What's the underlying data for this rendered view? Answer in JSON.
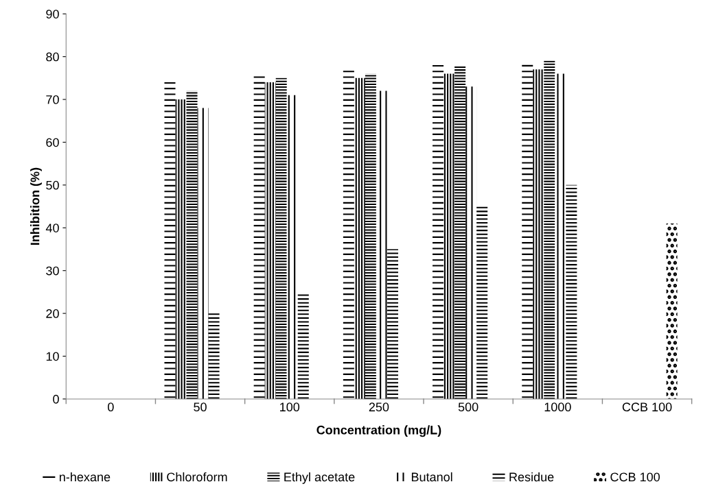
{
  "chart_data": {
    "type": "bar",
    "xlabel": "Concentration (mg/L)",
    "ylabel": "Inhibition (%)",
    "categories": [
      "0",
      "50",
      "100",
      "250",
      "500",
      "1000",
      "CCB 100"
    ],
    "series": [
      {
        "name": "n-hexane",
        "color": "#000000",
        "values": [
          null,
          74,
          76,
          77,
          78,
          78.5,
          null
        ]
      },
      {
        "name": "Chloroform",
        "color": "#000000",
        "values": [
          null,
          70,
          74,
          75,
          76,
          77,
          null
        ]
      },
      {
        "name": "Ethyl acetate",
        "color": "#000000",
        "values": [
          null,
          72,
          75,
          76,
          78,
          79,
          null
        ]
      },
      {
        "name": "Butanol",
        "color": "#000000",
        "values": [
          null,
          68,
          71,
          72,
          73,
          76,
          null
        ]
      },
      {
        "name": "Residue",
        "color": "#000000",
        "values": [
          null,
          20,
          25,
          35,
          45,
          50,
          null
        ]
      },
      {
        "name": "CCB 100",
        "color": "#000000",
        "values": [
          null,
          null,
          null,
          null,
          null,
          null,
          41
        ]
      }
    ],
    "ylim": [
      0,
      90
    ],
    "yticks": [
      0,
      10,
      20,
      30,
      40,
      50,
      60,
      70,
      80,
      90
    ],
    "grid": false,
    "legend": "bottom"
  }
}
